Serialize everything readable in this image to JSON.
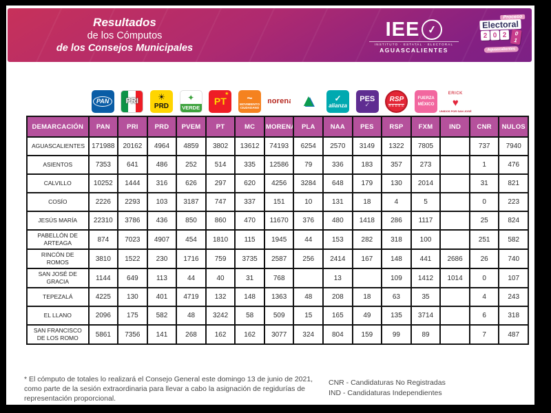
{
  "banner": {
    "line1": "Resultados",
    "line2": "de los Cómputos",
    "line3": "de los Consejos Municipales"
  },
  "iee_logo": {
    "acronym": "IEE",
    "check": "✓",
    "tagline": "INSTITUTO · ESTATAL · ELECTORAL",
    "state": "AGUASCALIENTES"
  },
  "proceso_logo": {
    "word1": "Proceso",
    "word2": "Electoral",
    "digits": [
      "2",
      "0",
      "2"
    ],
    "dice_top": "0",
    "dice_bottom": "1",
    "state": "Aguascalientes"
  },
  "party_logos": [
    {
      "id": "pan",
      "label": "PAN"
    },
    {
      "id": "pri",
      "label": "PRI"
    },
    {
      "id": "prd",
      "label": "PRD",
      "glyph": "☀"
    },
    {
      "id": "pvem",
      "label": "VERDE",
      "glyph": "✦"
    },
    {
      "id": "pt",
      "label": "PT",
      "glyph": "★"
    },
    {
      "id": "mc",
      "label": "MOVIMIENTO CIUDADANO",
      "glyph": "~"
    },
    {
      "id": "morena",
      "label": "morena"
    },
    {
      "id": "pla",
      "glyph": "▲"
    },
    {
      "id": "naa",
      "label": "alianza",
      "glyph": "✓"
    },
    {
      "id": "pes",
      "label": "PES",
      "glyph": "✓"
    },
    {
      "id": "rsp",
      "label": "RSP",
      "sub": "REDES"
    },
    {
      "id": "fxm",
      "label": "FUERZA MÉXICO"
    },
    {
      "id": "ind",
      "label": "ERICK",
      "glyph": "♥",
      "caption": "UNIDOS POR SAN JOSÉ"
    }
  ],
  "table": {
    "headers": [
      "DEMARCACIÓN",
      "PAN",
      "PRI",
      "PRD",
      "PVEM",
      "PT",
      "MC",
      "MORENA",
      "PLA",
      "NAA",
      "PES",
      "RSP",
      "FXM",
      "IND",
      "CNR",
      "NULOS"
    ],
    "rows": [
      {
        "demarcacion": "AGUASCALIENTES",
        "values": [
          "171988",
          "20162",
          "4964",
          "4859",
          "3802",
          "13612",
          "74193",
          "6254",
          "2570",
          "3149",
          "1322",
          "7805",
          "",
          "737",
          "7940"
        ]
      },
      {
        "demarcacion": "ASIENTOS",
        "values": [
          "7353",
          "641",
          "486",
          "252",
          "514",
          "335",
          "12586",
          "79",
          "336",
          "183",
          "357",
          "273",
          "",
          "1",
          "476"
        ]
      },
      {
        "demarcacion": "CALVILLO",
        "values": [
          "10252",
          "1444",
          "316",
          "626",
          "297",
          "620",
          "4256",
          "3284",
          "648",
          "179",
          "130",
          "2014",
          "",
          "31",
          "821"
        ]
      },
      {
        "demarcacion": "COSÍO",
        "values": [
          "2226",
          "2293",
          "103",
          "3187",
          "747",
          "337",
          "151",
          "10",
          "131",
          "18",
          "4",
          "5",
          "",
          "0",
          "223"
        ]
      },
      {
        "demarcacion": "JESÚS MARÍA",
        "values": [
          "22310",
          "3786",
          "436",
          "850",
          "860",
          "470",
          "11670",
          "376",
          "480",
          "1418",
          "286",
          "1117",
          "",
          "25",
          "824"
        ]
      },
      {
        "demarcacion": "PABELLÓN DE ARTEAGA",
        "values": [
          "874",
          "7023",
          "4907",
          "454",
          "1810",
          "115",
          "1945",
          "44",
          "153",
          "282",
          "318",
          "100",
          "",
          "251",
          "582"
        ]
      },
      {
        "demarcacion": "RINCÓN DE ROMOS",
        "values": [
          "3810",
          "1522",
          "230",
          "1716",
          "759",
          "3735",
          "2587",
          "256",
          "2414",
          "167",
          "148",
          "441",
          "2686",
          "26",
          "740"
        ]
      },
      {
        "demarcacion": "SAN JOSÉ DE GRACIA",
        "values": [
          "1144",
          "649",
          "113",
          "44",
          "40",
          "31",
          "768",
          "",
          "13",
          "",
          "109",
          "1412",
          "1014",
          "0",
          "107"
        ]
      },
      {
        "demarcacion": "TEPEZALÁ",
        "values": [
          "4225",
          "130",
          "401",
          "4719",
          "132",
          "148",
          "1363",
          "48",
          "208",
          "18",
          "63",
          "35",
          "",
          "4",
          "243"
        ]
      },
      {
        "demarcacion": "EL LLANO",
        "values": [
          "2096",
          "175",
          "582",
          "48",
          "3242",
          "58",
          "509",
          "15",
          "165",
          "49",
          "135",
          "3714",
          "",
          "6",
          "318"
        ]
      },
      {
        "demarcacion": "SAN FRANCISCO DE LOS ROMO",
        "values": [
          "5861",
          "7356",
          "141",
          "268",
          "162",
          "162",
          "3077",
          "324",
          "804",
          "159",
          "99",
          "89",
          "",
          "7",
          "487"
        ]
      }
    ]
  },
  "footer": {
    "note": "* El cómputo de totales lo realizará el Consejo General este domingo 13 de junio de 2021, como parte de la sesión extraordinaria para llevar a cabo la asignación de regidurías de representación proporcional.",
    "cnr_def": "CNR - Candidaturas No Registradas",
    "ind_def": "IND - Candidaturas Independientes"
  },
  "colors": {
    "header_cell": "#b5519c",
    "banner_from": "#c7315a",
    "banner_to": "#7c2185",
    "frame": "#000000"
  }
}
